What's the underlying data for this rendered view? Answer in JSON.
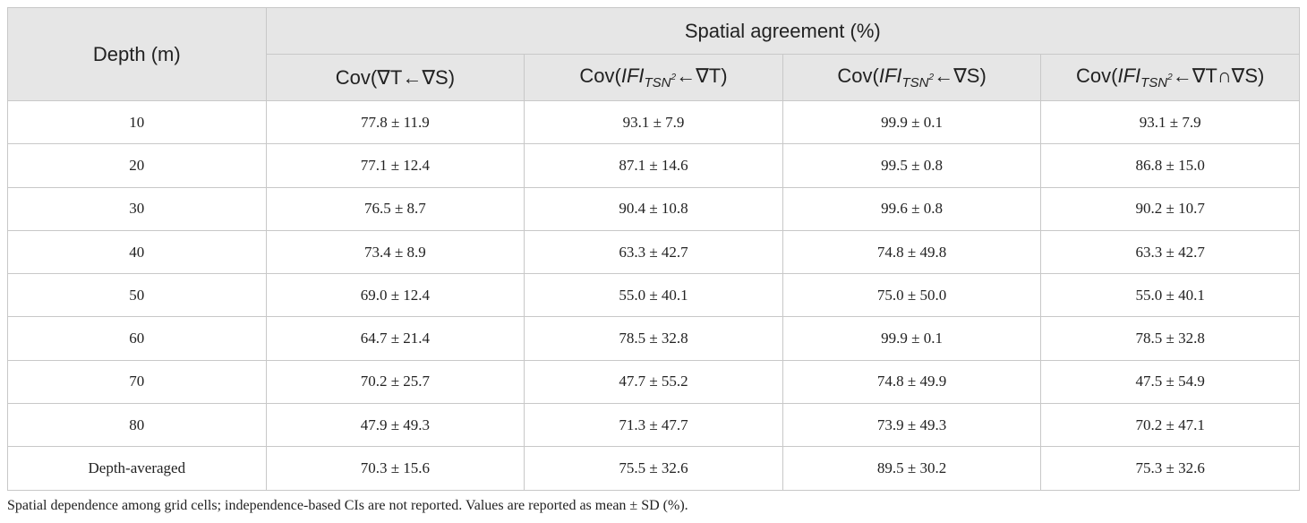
{
  "table": {
    "header": {
      "depth": "Depth (m)",
      "group": "Spatial agreement (%)",
      "columns": [
        {
          "pre": "Cov(∇T←∇S)"
        },
        {
          "pre": "Cov(",
          "ifi": "IFI",
          "sub": "TSN",
          "sup": "2",
          "post": "←∇T)"
        },
        {
          "pre": "Cov(",
          "ifi": "IFI",
          "sub": "TSN",
          "sup": "2",
          "post": "←∇S)"
        },
        {
          "pre": "Cov(",
          "ifi": "IFI",
          "sub": "TSN",
          "sup": "2",
          "post": "←∇T∩∇S)"
        }
      ]
    },
    "rows": [
      [
        "10",
        "77.8 ± 11.9",
        "93.1 ± 7.9",
        "99.9 ± 0.1",
        "93.1 ± 7.9"
      ],
      [
        "20",
        "77.1 ± 12.4",
        "87.1 ± 14.6",
        "99.5 ± 0.8",
        "86.8 ± 15.0"
      ],
      [
        "30",
        "76.5 ± 8.7",
        "90.4 ± 10.8",
        "99.6 ± 0.8",
        "90.2 ± 10.7"
      ],
      [
        "40",
        "73.4 ± 8.9",
        "63.3 ± 42.7",
        "74.8 ± 49.8",
        "63.3 ± 42.7"
      ],
      [
        "50",
        "69.0 ± 12.4",
        "55.0 ± 40.1",
        "75.0 ± 50.0",
        "55.0 ± 40.1"
      ],
      [
        "60",
        "64.7 ± 21.4",
        "78.5 ± 32.8",
        "99.9 ± 0.1",
        "78.5 ± 32.8"
      ],
      [
        "70",
        "70.2 ± 25.7",
        "47.7 ± 55.2",
        "74.8 ± 49.9",
        "47.5 ± 54.9"
      ],
      [
        "80",
        "47.9 ± 49.3",
        "71.3 ± 47.7",
        "73.9 ± 49.3",
        "70.2 ± 47.1"
      ],
      [
        "Depth-averaged",
        "70.3 ± 15.6",
        "75.5 ± 32.6",
        "89.5 ± 30.2",
        "75.3 ± 32.6"
      ]
    ],
    "footnote": "Spatial dependence among grid cells; independence-based CIs are not reported. Values are reported as mean ± SD (%)."
  }
}
